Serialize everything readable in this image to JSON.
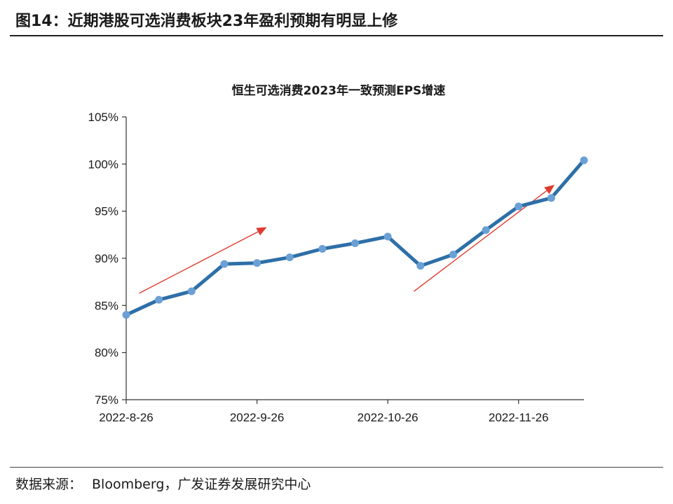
{
  "figure": {
    "title": "图14：近期港股可选消费板块23年盈利预期有明显上修",
    "source_label": "数据来源：",
    "source_text": "Bloomberg，广发证券发展研究中心"
  },
  "colors": {
    "line": "#2e6fa7",
    "marker": "#6aa0d6",
    "trend_arrow": "#e03a2f",
    "axis": "#333333"
  },
  "chart_data": {
    "type": "line",
    "title": "恒生可选消费2023年一致预测EPS增速",
    "xlabel": "",
    "ylabel": "",
    "x_tick_labels": [
      "2022-8-26",
      "2022-9-26",
      "2022-10-26",
      "2022-11-26"
    ],
    "x_tick_indices": [
      0,
      4,
      8,
      12
    ],
    "y_tick_labels": [
      "75%",
      "80%",
      "85%",
      "90%",
      "95%",
      "100%",
      "105%"
    ],
    "ylim": [
      75,
      105
    ],
    "grid": false,
    "legend": "none",
    "series": [
      {
        "values": [
          84.0,
          85.6,
          86.5,
          89.4,
          89.5,
          90.1,
          91.0,
          91.6,
          92.3,
          89.2,
          90.4,
          93.0,
          95.5,
          96.4,
          100.4
        ]
      }
    ],
    "annotations": [
      {
        "type": "trend-arrow",
        "from_index": 0.4,
        "from_value": 86.3,
        "to_index": 4.3,
        "to_value": 93.3
      },
      {
        "type": "trend-arrow",
        "from_index": 8.8,
        "from_value": 86.5,
        "to_index": 13.1,
        "to_value": 97.8
      }
    ]
  }
}
